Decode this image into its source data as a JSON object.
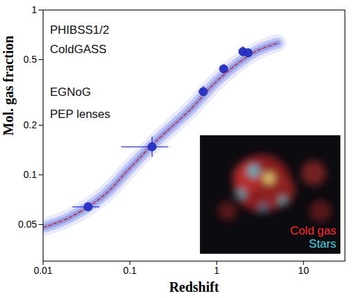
{
  "chart_data": {
    "type": "scatter",
    "x_label": "Redshift",
    "y_label": "Mol. gas fraction",
    "log": true,
    "xlim": [
      0.01,
      30
    ],
    "ylim": [
      0.03,
      1
    ],
    "xticks": [
      0.01,
      0.1,
      1,
      10
    ],
    "yticks": [
      0.05,
      0.1,
      0.2,
      0.5,
      1
    ],
    "annotations": [
      "PHIBSS1/2",
      "ColdGASS",
      "EGNoG",
      "PEP lenses"
    ],
    "inset_labels": [
      {
        "text": "Cold gas",
        "color": "#ff2a2a"
      },
      {
        "text": "Stars",
        "color": "#45d6e6"
      }
    ],
    "series": [
      {
        "type": "line",
        "color": "#c03030",
        "line_style": "dashed",
        "x": [
          0.01,
          0.02,
          0.05,
          0.1,
          0.2,
          0.5,
          1,
          2,
          3,
          5
        ],
        "values": [
          0.048,
          0.055,
          0.075,
          0.11,
          0.16,
          0.25,
          0.37,
          0.5,
          0.57,
          0.63
        ]
      },
      {
        "type": "scatter",
        "color": "#2a34c8",
        "marker": "circle",
        "x": [
          0.033,
          0.18,
          0.7,
          1.2,
          2.0,
          2.3
        ],
        "values": [
          0.064,
          0.148,
          0.32,
          0.44,
          0.56,
          0.55
        ],
        "x_low": [
          0.022,
          0.08,
          0.62,
          1.1,
          1.85,
          2.15
        ],
        "x_high": [
          0.045,
          0.28,
          0.78,
          1.3,
          2.15,
          2.45
        ],
        "y_low": [
          0.06,
          0.128,
          0.3,
          0.42,
          0.52,
          0.52
        ],
        "y_high": [
          0.068,
          0.17,
          0.345,
          0.46,
          0.6,
          0.58
        ]
      }
    ]
  }
}
